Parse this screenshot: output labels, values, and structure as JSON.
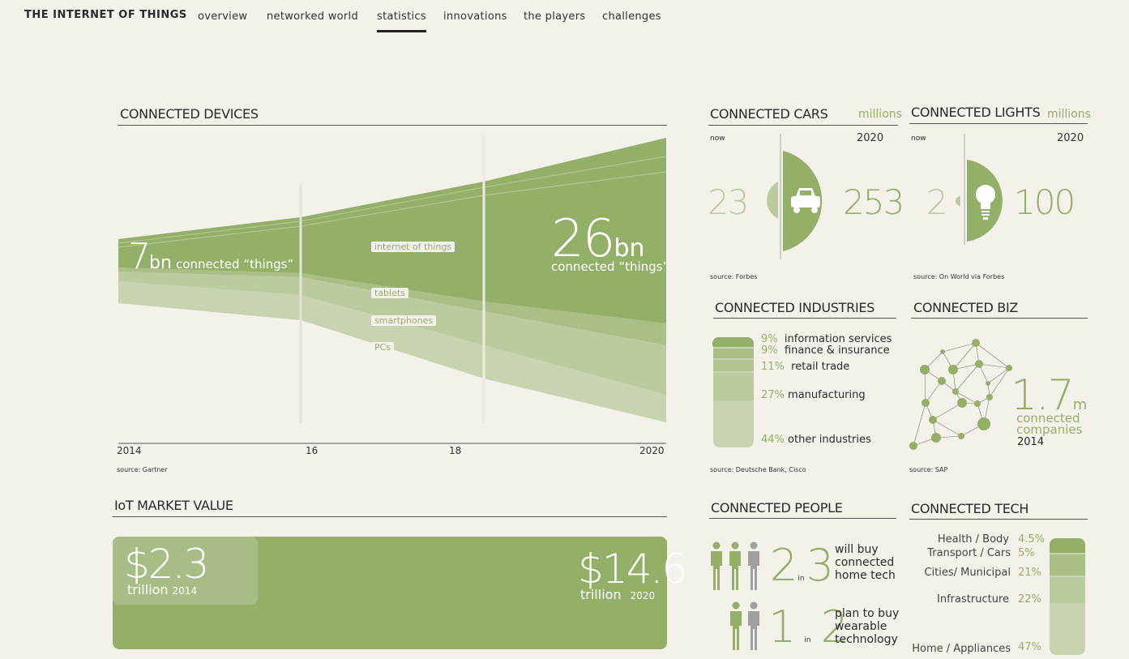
{
  "nav": {
    "brand": "THE INTERNET OF THINGS",
    "links": [
      "overview",
      "networked world",
      "statistics",
      "innovations",
      "the players",
      "challenges"
    ],
    "active": "statistics"
  },
  "devices": {
    "title": "CONNECTED DEVICES",
    "left_value": "7",
    "left_unit": "bn",
    "left_label": "connected “things”",
    "right_value": "26",
    "right_unit": "bn",
    "right_label": "connected “things”",
    "layers": [
      "internet of things",
      "tablets",
      "smartphones",
      "PCs"
    ],
    "x_ticks": [
      "2014",
      "16",
      "18",
      "2020"
    ],
    "source": "source: Gartner"
  },
  "market": {
    "title": "IoT MARKET VALUE",
    "left_value": "$2.3",
    "left_label": "trillion",
    "left_year": "2014",
    "right_value": "$14.6",
    "right_label": "trillion",
    "right_year": "2020"
  },
  "cars": {
    "title": "CONNECTED CARS",
    "unit": "millions",
    "now_label": "now",
    "year_label": "2020",
    "now_value": "23",
    "future_value": "253",
    "source": "source: Forbes"
  },
  "lights": {
    "title": "CONNECTED LIGHTS",
    "unit": "millions",
    "now_label": "now",
    "year_label": "2020",
    "now_value": "2",
    "future_value": "100",
    "source": "source: On World via Forbes"
  },
  "industries": {
    "title": "CONNECTED INDUSTRIES",
    "items": [
      {
        "pct": "9%",
        "label": "information services"
      },
      {
        "pct": "9%",
        "label": "finance & insurance"
      },
      {
        "pct": "11%",
        "label": "retail trade"
      },
      {
        "pct": "27%",
        "label": "manufacturing"
      },
      {
        "pct": "44%",
        "label": "other industries"
      }
    ],
    "source": "source: Deutsche Bank, Cisco"
  },
  "biz": {
    "title": "CONNECTED BIZ",
    "value": "1.7",
    "unit": "m",
    "label1": "connected",
    "label2": "companies",
    "year": "2014",
    "source": "source: SAP"
  },
  "people": {
    "title": "CONNECTED PEOPLE",
    "row1_a": "2",
    "row1_in": "in",
    "row1_b": "3",
    "row1_text": [
      "will buy",
      "connected",
      "home tech"
    ],
    "row2_a": "1",
    "row2_in": "in",
    "row2_b": "2",
    "row2_text": [
      "plan to buy",
      "wearable",
      "technology"
    ]
  },
  "tech": {
    "title": "CONNECTED TECH",
    "items": [
      {
        "label": "Health / Body",
        "pct": "4.5%"
      },
      {
        "label": "Transport / Cars",
        "pct": "5%"
      },
      {
        "label": "Cities/ Municipal",
        "pct": "21%"
      },
      {
        "label": "Infrastructure",
        "pct": "22%"
      },
      {
        "label": "Home / Appliances",
        "pct": "47%"
      }
    ]
  },
  "colors": {
    "background": "#f3f1ea",
    "green_dark": "#94af68",
    "green_mid": "#a9bf86",
    "green_light": "#bccb9f",
    "green_pale": "#c8d4b0",
    "gray_person": "#a0a0a0"
  }
}
